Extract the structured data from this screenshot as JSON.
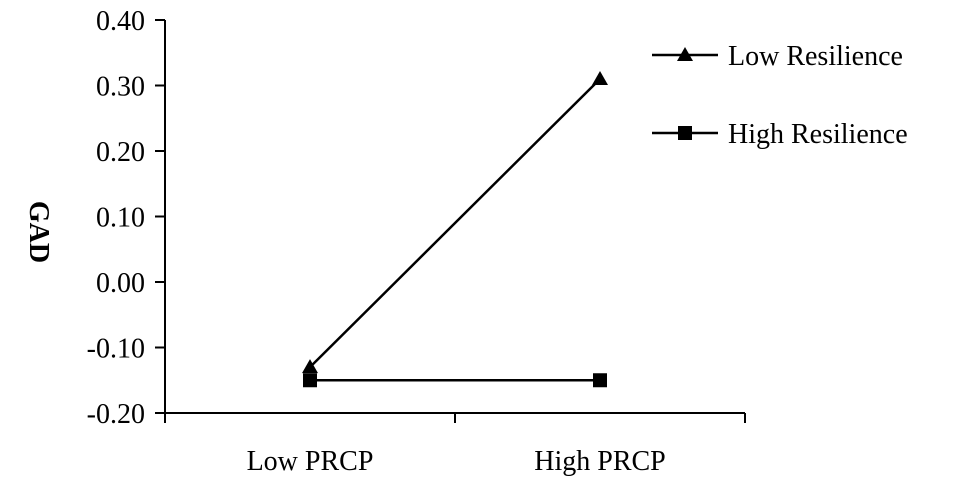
{
  "chart_data": {
    "type": "line",
    "title": "",
    "xlabel": "",
    "ylabel": "GAD",
    "categories": [
      "Low PRCP",
      "High PRCP"
    ],
    "ylim": [
      -0.2,
      0.4
    ],
    "yticks": [
      0.4,
      0.3,
      0.2,
      0.1,
      0.0,
      -0.1,
      -0.2
    ],
    "ytick_labels": [
      "0.40",
      "0.30",
      "0.20",
      "0.10",
      "0.00",
      "-0.10",
      "-0.20"
    ],
    "grid": false,
    "legend": "right",
    "series": [
      {
        "name": "Low Resilience",
        "marker": "triangle",
        "values": [
          -0.13,
          0.31
        ],
        "color": "#000000"
      },
      {
        "name": "High Resilience",
        "marker": "square",
        "values": [
          -0.15,
          -0.15
        ],
        "color": "#000000"
      }
    ]
  }
}
